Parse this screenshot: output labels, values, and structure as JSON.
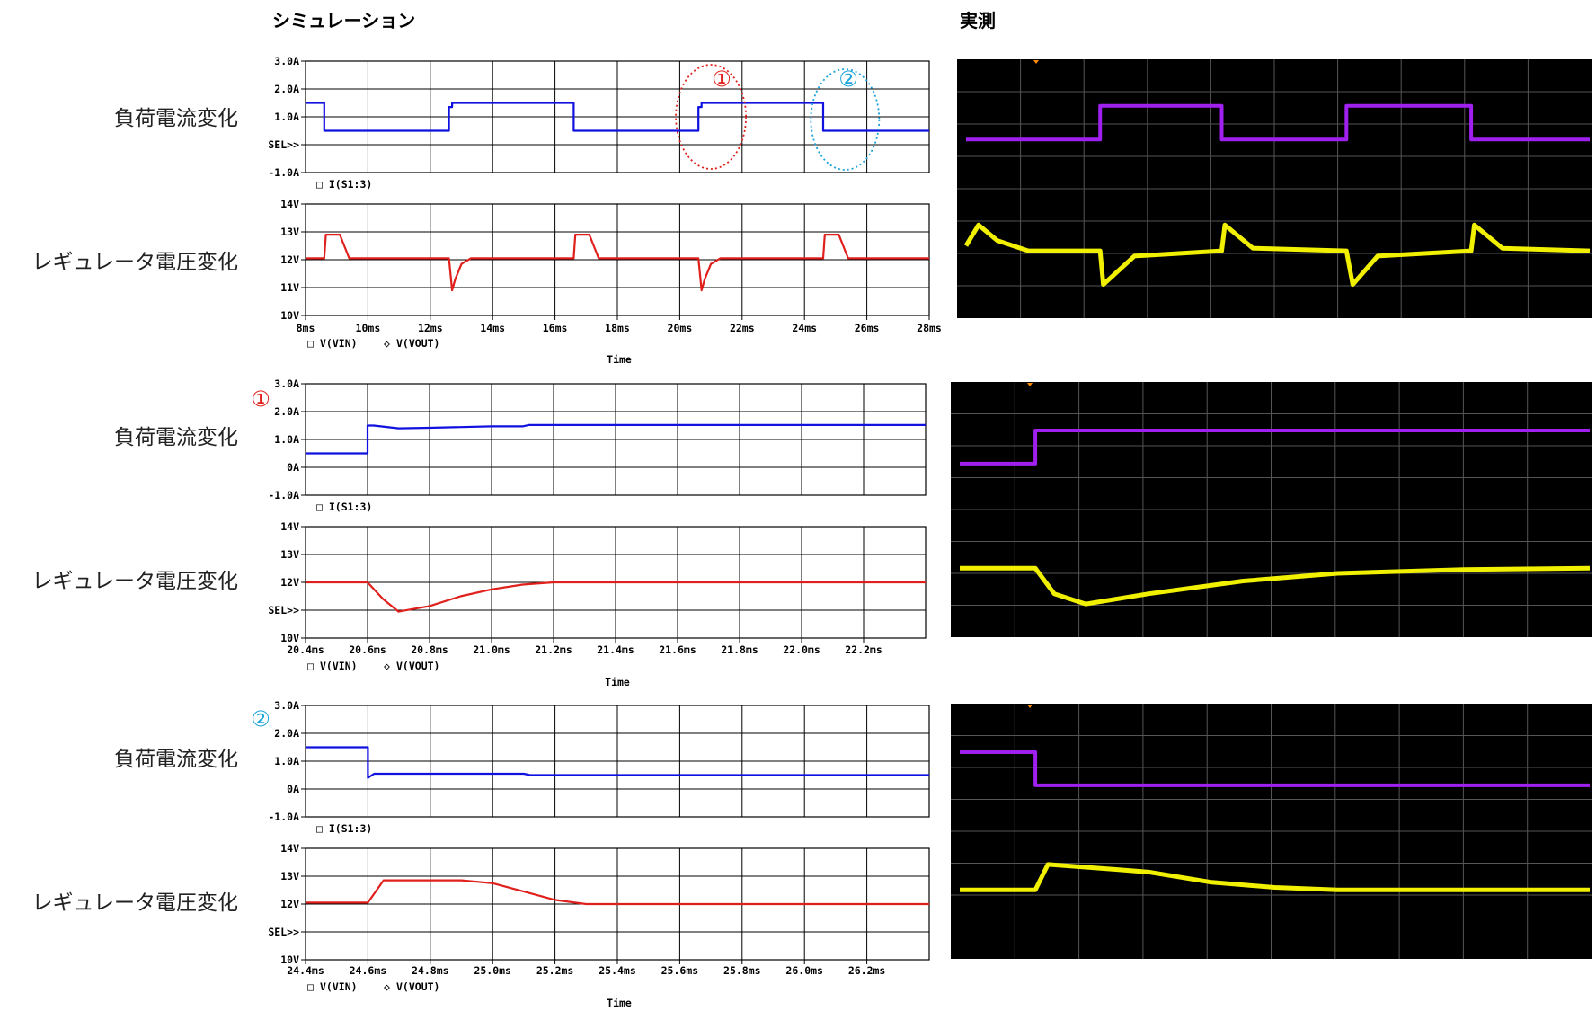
{
  "headers": {
    "simulation": "シミュレーション",
    "measured": "実測"
  },
  "row_labels": {
    "current": "負荷電流変化",
    "voltage": "レギュレータ電圧変化"
  },
  "markers": [
    {
      "symbol": "①",
      "color": "#e0201c"
    },
    {
      "symbol": "②",
      "color": "#1aa3d9"
    }
  ],
  "colors": {
    "sim_current": "#1010e0",
    "sim_voltage": "#e0201c",
    "scope_current": "#a020f0",
    "scope_voltage": "#f0f000",
    "scope_bg": "#000000",
    "scope_grid": "#555555"
  },
  "chart_data": [
    {
      "type": "line",
      "xlabel": "Time",
      "x_ticks": [
        "8ms",
        "10ms",
        "12ms",
        "14ms",
        "16ms",
        "18ms",
        "20ms",
        "22ms",
        "24ms",
        "26ms",
        "28ms"
      ],
      "xlim": [
        8,
        28
      ],
      "annotation_regions": [
        {
          "marker": "①",
          "x_center_ms": 21.0
        },
        {
          "marker": "②",
          "x_center_ms": 25.3
        }
      ],
      "panels": [
        {
          "name": "current",
          "y_ticks": [
            "3.0A",
            "2.0A",
            "1.0A",
            "SEL>>",
            "-1.0A"
          ],
          "ylim": [
            -1,
            3
          ],
          "legend": [
            {
              "marker": "□",
              "text": "I(S1:3)"
            }
          ],
          "series": [
            {
              "name": "I(S1:3)",
              "color": "#1010e0",
              "x": [
                8.0,
                8.6,
                8.6,
                12.6,
                12.6,
                12.7,
                12.7,
                16.6,
                16.6,
                20.6,
                20.6,
                20.7,
                20.7,
                24.6,
                24.6,
                28.0
              ],
              "y": [
                1.5,
                1.5,
                0.5,
                0.5,
                1.35,
                1.35,
                1.5,
                1.5,
                0.5,
                0.5,
                1.35,
                1.35,
                1.5,
                1.5,
                0.5,
                0.5
              ]
            }
          ]
        },
        {
          "name": "voltage",
          "y_ticks": [
            "14V",
            "13V",
            "12V",
            "11V",
            "10V"
          ],
          "ylim": [
            10,
            14
          ],
          "legend": [
            {
              "marker": "□",
              "text": "V(VIN)"
            },
            {
              "marker": "◇",
              "text": "V(VOUT)"
            }
          ],
          "series": [
            {
              "name": "V(VOUT)",
              "color": "#e0201c",
              "x": [
                8.0,
                8.6,
                8.65,
                9.1,
                9.4,
                12.6,
                12.7,
                12.8,
                13.0,
                13.3,
                16.6,
                16.65,
                17.1,
                17.4,
                20.6,
                20.7,
                20.8,
                21.0,
                21.3,
                24.6,
                24.65,
                25.1,
                25.4,
                28.0
              ],
              "y": [
                12.05,
                12.05,
                12.9,
                12.9,
                12.05,
                12.05,
                10.9,
                11.3,
                11.85,
                12.05,
                12.05,
                12.9,
                12.9,
                12.05,
                12.05,
                10.9,
                11.3,
                11.85,
                12.05,
                12.05,
                12.9,
                12.9,
                12.05,
                12.05
              ]
            }
          ]
        }
      ]
    },
    {
      "type": "line",
      "xlabel": "Time",
      "x_ticks": [
        "20.4ms",
        "20.6ms",
        "20.8ms",
        "21.0ms",
        "21.2ms",
        "21.4ms",
        "21.6ms",
        "21.8ms",
        "22.0ms",
        "22.2ms"
      ],
      "xlim": [
        20.4,
        22.4
      ],
      "panels": [
        {
          "name": "current",
          "y_ticks": [
            "3.0A",
            "2.0A",
            "1.0A",
            "0A",
            "-1.0A"
          ],
          "ylim": [
            -1,
            3
          ],
          "legend": [
            {
              "marker": "□",
              "text": "I(S1:3)"
            }
          ],
          "series": [
            {
              "name": "I(S1:3)",
              "color": "#1010e0",
              "x": [
                20.4,
                20.6,
                20.6,
                20.62,
                20.7,
                20.8,
                21.0,
                21.1,
                21.12,
                22.4
              ],
              "y": [
                0.5,
                0.5,
                1.5,
                1.5,
                1.4,
                1.42,
                1.47,
                1.47,
                1.52,
                1.52
              ]
            }
          ]
        },
        {
          "name": "voltage",
          "y_ticks": [
            "14V",
            "13V",
            "12V",
            "SEL>>",
            "10V"
          ],
          "ylim": [
            10,
            14
          ],
          "legend": [
            {
              "marker": "□",
              "text": "V(VIN)"
            },
            {
              "marker": "◇",
              "text": "V(VOUT)"
            }
          ],
          "series": [
            {
              "name": "V(VOUT)",
              "color": "#e0201c",
              "x": [
                20.4,
                20.6,
                20.65,
                20.7,
                20.8,
                20.9,
                21.0,
                21.1,
                21.2,
                22.4
              ],
              "y": [
                12.0,
                12.0,
                11.4,
                10.95,
                11.15,
                11.5,
                11.75,
                11.92,
                12.0,
                12.0
              ]
            }
          ]
        }
      ]
    },
    {
      "type": "line",
      "xlabel": "Time",
      "x_ticks": [
        "24.4ms",
        "24.6ms",
        "24.8ms",
        "25.0ms",
        "25.2ms",
        "25.4ms",
        "25.6ms",
        "25.8ms",
        "26.0ms",
        "26.2ms"
      ],
      "xlim": [
        24.4,
        26.4
      ],
      "panels": [
        {
          "name": "current",
          "y_ticks": [
            "3.0A",
            "2.0A",
            "1.0A",
            "0A",
            "-1.0A"
          ],
          "ylim": [
            -1,
            3
          ],
          "legend": [
            {
              "marker": "□",
              "text": "I(S1:3)"
            }
          ],
          "series": [
            {
              "name": "I(S1:3)",
              "color": "#1010e0",
              "x": [
                24.4,
                24.6,
                24.6,
                24.62,
                25.1,
                25.12,
                26.4
              ],
              "y": [
                1.5,
                1.5,
                0.4,
                0.55,
                0.55,
                0.5,
                0.5
              ]
            }
          ]
        },
        {
          "name": "voltage",
          "y_ticks": [
            "14V",
            "13V",
            "12V",
            "SEL>>",
            "10V"
          ],
          "ylim": [
            10,
            14
          ],
          "legend": [
            {
              "marker": "□",
              "text": "V(VIN)"
            },
            {
              "marker": "◇",
              "text": "V(VOUT)"
            }
          ],
          "series": [
            {
              "name": "V(VOUT)",
              "color": "#e0201c",
              "x": [
                24.4,
                24.6,
                24.65,
                24.9,
                25.0,
                25.1,
                25.2,
                25.3,
                26.4
              ],
              "y": [
                12.05,
                12.05,
                12.85,
                12.85,
                12.75,
                12.45,
                12.15,
                12.0,
                12.0
              ]
            }
          ]
        }
      ]
    },
    {
      "type": "line",
      "title": "実測",
      "series": [
        {
          "color": "#a020f0",
          "x": [
            0.0,
            0.215,
            0.215,
            0.41,
            0.41,
            0.61,
            0.61,
            0.81,
            0.81,
            1.0
          ],
          "y": [
            0.69,
            0.69,
            0.82,
            0.82,
            0.69,
            0.69,
            0.82,
            0.82,
            0.69,
            0.69
          ]
        },
        {
          "color": "#f0f000",
          "x": [
            0.0,
            0.02,
            0.05,
            0.1,
            0.215,
            0.22,
            0.27,
            0.41,
            0.415,
            0.46,
            0.61,
            0.62,
            0.66,
            0.81,
            0.815,
            0.86,
            1.0
          ],
          "y": [
            0.28,
            0.36,
            0.3,
            0.26,
            0.26,
            0.13,
            0.24,
            0.26,
            0.36,
            0.27,
            0.26,
            0.13,
            0.24,
            0.26,
            0.36,
            0.27,
            0.26
          ]
        }
      ]
    },
    {
      "type": "line",
      "series": [
        {
          "color": "#a020f0",
          "x": [
            0.0,
            0.12,
            0.12,
            1.0
          ],
          "y": [
            0.68,
            0.68,
            0.81,
            0.81
          ]
        },
        {
          "color": "#f0f000",
          "x": [
            0.0,
            0.12,
            0.15,
            0.2,
            0.3,
            0.45,
            0.6,
            0.8,
            1.0
          ],
          "y": [
            0.27,
            0.27,
            0.17,
            0.13,
            0.17,
            0.22,
            0.25,
            0.265,
            0.27
          ]
        }
      ]
    },
    {
      "type": "line",
      "series": [
        {
          "color": "#a020f0",
          "x": [
            0.0,
            0.12,
            0.12,
            1.0
          ],
          "y": [
            0.81,
            0.81,
            0.68,
            0.68
          ]
        },
        {
          "color": "#f0f000",
          "x": [
            0.0,
            0.12,
            0.14,
            0.25,
            0.3,
            0.4,
            0.5,
            0.6,
            1.0
          ],
          "y": [
            0.27,
            0.27,
            0.37,
            0.35,
            0.34,
            0.3,
            0.28,
            0.27,
            0.27
          ]
        }
      ]
    }
  ]
}
